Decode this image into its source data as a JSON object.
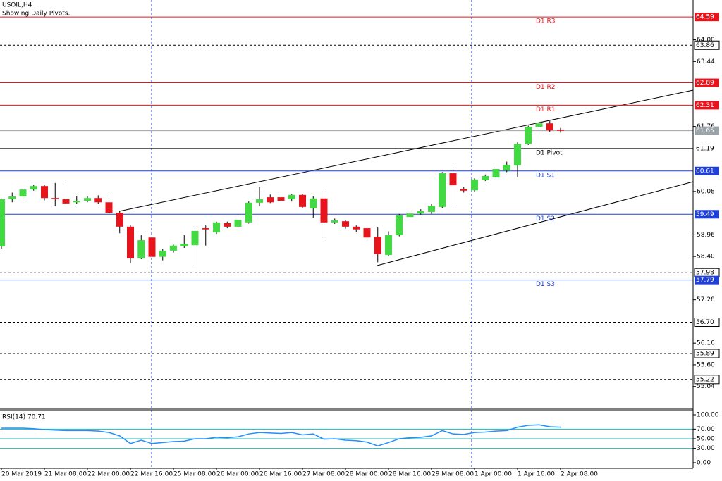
{
  "chart_data": {
    "type": "candlestick",
    "title": "USOIL,H4",
    "subtitle": "Showing Daily Pivots.",
    "categories": [
      "20 Mar 2019",
      null,
      null,
      null,
      "21 Mar 08:00",
      null,
      null,
      null,
      "22 Mar 00:00",
      null,
      null,
      null,
      "22 Mar 16:00",
      null,
      null,
      null,
      "25 Mar 08:00",
      null,
      null,
      null,
      "26 Mar 00:00",
      null,
      null,
      null,
      "26 Mar 16:00",
      null,
      null,
      null,
      "27 Mar 08:00",
      null,
      null,
      null,
      "28 Mar 00:00",
      null,
      null,
      null,
      "28 Mar 16:00",
      null,
      null,
      null,
      "29 Mar 08:00",
      null,
      null,
      null,
      "1 Apr 00:00",
      null,
      null,
      null,
      "1 Apr 16:00",
      null,
      null,
      null,
      "2 Apr 08:00"
    ],
    "open": [
      58.66,
      59.88,
      59.95,
      60.13,
      60.22,
      59.91,
      59.88,
      59.8,
      59.84,
      59.91,
      59.8,
      59.53,
      59.17,
      58.35,
      58.89,
      58.39,
      58.55,
      58.66,
      58.69,
      59.13,
      59.02,
      59.26,
      59.17,
      59.28,
      59.79,
      59.93,
      59.93,
      59.88,
      59.99,
      59.64,
      59.9,
      59.28,
      59.31,
      59.17,
      59.13,
      58.91,
      58.44,
      58.95,
      59.42,
      59.51,
      59.55,
      59.68,
      60.55,
      60.15,
      60.11,
      60.37,
      60.44,
      60.62,
      60.75,
      61.31,
      61.75,
      61.84,
      61.68
    ],
    "high": [
      59.9,
      60.05,
      60.18,
      60.25,
      60.25,
      60.3,
      60.3,
      59.95,
      59.95,
      59.98,
      59.95,
      59.58,
      59.2,
      58.95,
      58.92,
      58.6,
      58.7,
      58.95,
      59.1,
      59.2,
      59.3,
      59.3,
      59.4,
      59.82,
      60.2,
      60.0,
      59.95,
      60.02,
      60.02,
      59.95,
      60.2,
      59.38,
      59.34,
      59.2,
      59.18,
      59.15,
      59.05,
      59.5,
      59.55,
      59.62,
      59.75,
      60.58,
      60.68,
      60.2,
      60.42,
      60.52,
      60.7,
      60.85,
      61.35,
      61.78,
      61.88,
      61.9,
      61.72
    ],
    "low": [
      58.6,
      59.8,
      59.9,
      60.1,
      59.85,
      59.7,
      59.7,
      59.75,
      59.8,
      59.75,
      59.5,
      59.0,
      58.22,
      58.33,
      58.15,
      58.3,
      58.5,
      58.62,
      58.18,
      58.68,
      58.98,
      59.13,
      59.13,
      59.25,
      59.7,
      59.78,
      59.8,
      59.82,
      59.65,
      59.4,
      58.8,
      59.24,
      59.12,
      59.04,
      58.85,
      58.25,
      58.4,
      58.92,
      59.4,
      59.48,
      59.5,
      59.65,
      59.7,
      60.05,
      60.08,
      60.35,
      60.4,
      60.58,
      60.45,
      61.28,
      61.7,
      61.62,
      61.6
    ],
    "close": [
      59.88,
      59.95,
      60.13,
      60.22,
      59.91,
      59.88,
      59.77,
      59.84,
      59.91,
      59.8,
      59.53,
      59.17,
      58.35,
      58.82,
      58.39,
      58.55,
      58.68,
      58.73,
      59.06,
      59.1,
      59.28,
      59.17,
      59.35,
      59.79,
      59.88,
      59.8,
      59.84,
      59.99,
      59.68,
      59.9,
      59.28,
      59.33,
      59.17,
      59.1,
      58.89,
      58.46,
      58.95,
      59.46,
      59.51,
      59.57,
      59.71,
      60.55,
      60.24,
      60.1,
      60.39,
      60.48,
      60.66,
      60.77,
      61.31,
      61.75,
      61.84,
      61.66,
      61.65
    ],
    "up_color": "#43d943",
    "down_color": "#e8141c",
    "ylim": [
      54.47,
      65.03
    ],
    "yticks": [
      {
        "value": 64.0,
        "label": "64.00"
      },
      63.44,
      61.76,
      60.08,
      58.96,
      {
        "value": 58.4,
        "label": "58.40"
      },
      57.28,
      56.16,
      {
        "value": 55.6,
        "label": "55.60"
      },
      55.04
    ],
    "levels": [
      {
        "name": "D1 R3",
        "value": 64.59,
        "color": "#e8141c"
      },
      {
        "name": "D1 R2",
        "value": 62.89,
        "color": "#e8141c"
      },
      {
        "name": "D1 R1",
        "value": 62.31,
        "color": "#e8141c"
      },
      {
        "name": "D1 Pivot",
        "value": 61.19,
        "color": "#000000"
      },
      {
        "name": "D1 S1",
        "value": 60.61,
        "color": "#1f3fd6"
      },
      {
        "name": "D1 S2",
        "value": 59.49,
        "color": "#1f3fd6"
      },
      {
        "name": "D1 S3",
        "value": 57.79,
        "color": "#1f3fd6"
      }
    ],
    "dotted_levels": [
      63.86,
      57.98,
      {
        "value": 56.7,
        "label": "56.70"
      },
      55.89,
      55.22
    ],
    "last_price": 61.65,
    "rsi": {
      "label": "RSI(14) 70.71",
      "color": "#1e90ff",
      "ylim": [
        -11.8,
        108.8
      ],
      "yticks": [
        {
          "value": 100,
          "label": "100.00"
        },
        {
          "value": 70,
          "label": "70.00"
        },
        {
          "value": 50,
          "label": "50.00"
        },
        {
          "value": 30,
          "label": "30.00"
        },
        {
          "value": 0,
          "label": "0.00"
        }
      ],
      "levels": [
        70,
        50,
        30
      ],
      "values": [
        72,
        72,
        72,
        71,
        69,
        68,
        67,
        67,
        67,
        66,
        63,
        56,
        40,
        47,
        40,
        42,
        44,
        45,
        50,
        50,
        53,
        52,
        54,
        60,
        63,
        62,
        61,
        63,
        58,
        60,
        49,
        50,
        47,
        46,
        43,
        35,
        42,
        50,
        52,
        53,
        56,
        67,
        60,
        59,
        63,
        64,
        66,
        67,
        74,
        78,
        79,
        75,
        74
      ]
    }
  }
}
